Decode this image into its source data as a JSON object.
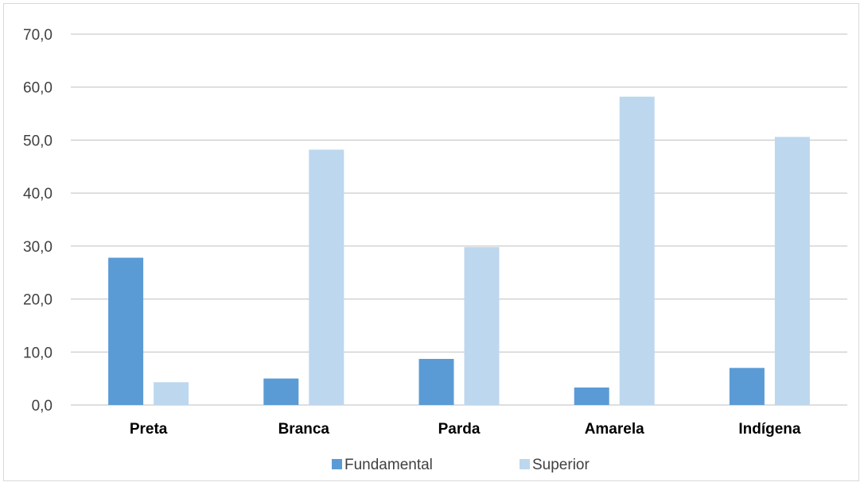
{
  "chart_data": {
    "type": "bar",
    "title": "",
    "xlabel": "",
    "ylabel": "",
    "categories": [
      "Preta",
      "Branca",
      "Parda",
      "Amarela",
      "Indígena"
    ],
    "series": [
      {
        "name": "Fundamental",
        "color": "#5b9bd5",
        "values": [
          27.8,
          5.0,
          8.7,
          3.3,
          7.0
        ]
      },
      {
        "name": "Superior",
        "color": "#bdd7ee",
        "values": [
          4.3,
          48.2,
          29.8,
          58.2,
          50.6
        ]
      }
    ],
    "ylim": [
      0,
      70
    ],
    "yticks": [
      "0,0",
      "10,0",
      "20,0",
      "30,0",
      "40,0",
      "50,0",
      "60,0",
      "70,0"
    ],
    "grid": true,
    "legend_position": "bottom"
  }
}
